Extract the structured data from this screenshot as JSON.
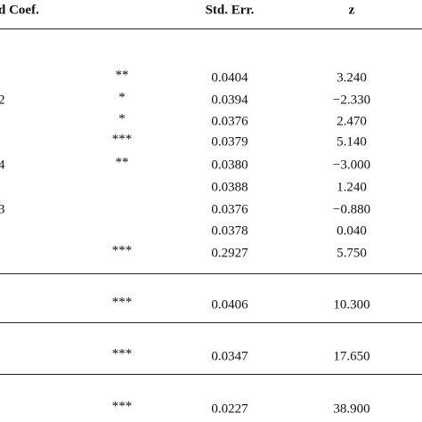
{
  "header": {
    "coef": "d Coef.",
    "std_err": "Std. Err.",
    "z": "z"
  },
  "table": {
    "rows": [
      {
        "stars": "**",
        "se": "0.0404",
        "z": "3.240"
      },
      {
        "label": "2",
        "stars": "*",
        "se": "0.0394",
        "z": "−2.330"
      },
      {
        "stars": "*",
        "se": "0.0376",
        "z": "2.470"
      },
      {
        "stars": "***",
        "se": "0.0379",
        "z": "5.140"
      },
      {
        "label": "4",
        "stars": "**",
        "se": "0.0380",
        "z": "−3.000"
      },
      {
        "se": "0.0388",
        "z": "1.240"
      },
      {
        "label": "3",
        "se": "0.0376",
        "z": "−0.880"
      },
      {
        "se": "0.0378",
        "z": "0.040"
      },
      {
        "stars": "***",
        "se": "0.2927",
        "z": "5.750"
      },
      {
        "stars": "***",
        "se": "0.0406",
        "z": "10.300"
      },
      {
        "stars": "***",
        "se": "0.0347",
        "z": "17.650"
      },
      {
        "stars": "***",
        "se": "0.0227",
        "z": "38.900"
      }
    ]
  }
}
